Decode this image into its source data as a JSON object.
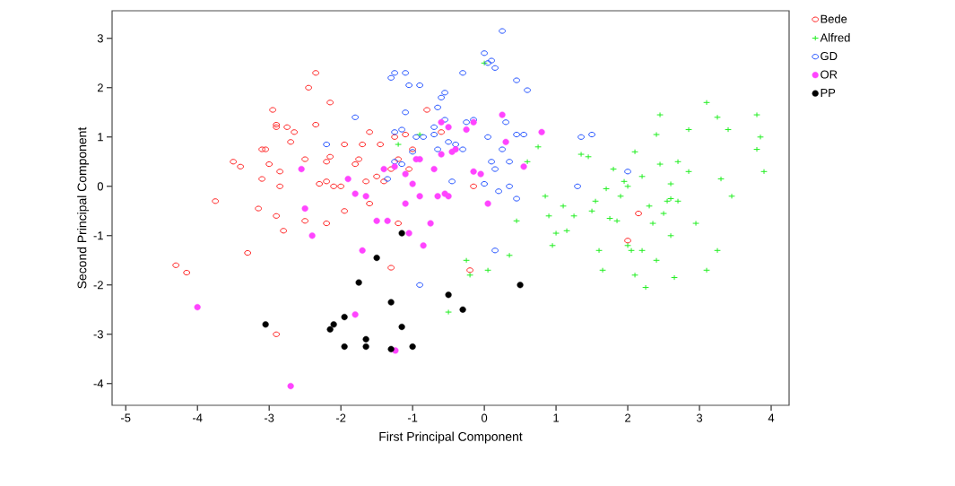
{
  "chart_data": {
    "type": "scatter",
    "xlabel": "First Principal Component",
    "ylabel": "Second Principal Component",
    "xlim": [
      -5.19,
      4.25
    ],
    "ylim": [
      -4.44,
      3.56
    ],
    "xticks": [
      -5,
      -4,
      -3,
      -2,
      -1,
      0,
      1,
      2,
      3,
      4
    ],
    "yticks": [
      -4,
      -3,
      -2,
      -1,
      0,
      1,
      2,
      3
    ],
    "grid": false,
    "legend": "top right",
    "series": [
      {
        "name": "Bede",
        "color": "#ff2020",
        "marker": "circle",
        "x": [
          -4.3,
          -4.15,
          -3.75,
          -3.5,
          -3.4,
          -3.3,
          -3.1,
          -3.05,
          -3.1,
          -3.15,
          -3.0,
          -2.95,
          -2.9,
          -2.9,
          -2.85,
          -2.85,
          -2.9,
          -2.8,
          -2.75,
          -2.65,
          -2.7,
          -2.5,
          -2.5,
          -2.45,
          -2.35,
          -2.35,
          -2.3,
          -2.2,
          -2.2,
          -2.15,
          -2.15,
          -2.1,
          -2.0,
          -1.95,
          -1.95,
          -2.2,
          -1.8,
          -1.7,
          -1.65,
          -1.6,
          -1.6,
          -1.5,
          -1.45,
          -1.3,
          -1.25,
          -1.2,
          -1.1,
          -1.05,
          -1.2,
          -1.0,
          -1.3,
          -0.2,
          -2.9,
          -1.4,
          2.15,
          2.0,
          -0.15,
          -0.8,
          -0.6,
          -1.75
        ],
        "values": [
          -1.6,
          -1.75,
          -0.3,
          0.5,
          0.4,
          -1.35,
          0.75,
          0.75,
          0.15,
          -0.45,
          0.45,
          1.55,
          1.25,
          1.2,
          0.3,
          0.0,
          -0.6,
          -0.9,
          1.2,
          1.1,
          0.9,
          0.55,
          -0.7,
          2.0,
          2.3,
          1.25,
          0.05,
          0.1,
          0.5,
          1.7,
          0.6,
          0.0,
          0.0,
          0.85,
          -0.5,
          -0.75,
          0.45,
          0.85,
          0.1,
          1.1,
          -0.35,
          0.2,
          0.85,
          0.35,
          1.0,
          0.55,
          1.05,
          0.35,
          -0.75,
          0.75,
          -1.65,
          -1.7,
          -3.0,
          0.1,
          -0.55,
          -1.1,
          0.0,
          1.55,
          1.1,
          0.55
        ]
      },
      {
        "name": "Alfred",
        "color": "#22ee22",
        "marker": "cross",
        "x": [
          -1.2,
          -0.9,
          0.0,
          -0.25,
          -0.2,
          0.05,
          0.35,
          -0.5,
          0.45,
          0.6,
          0.75,
          0.85,
          0.9,
          0.95,
          1.0,
          1.1,
          1.15,
          1.25,
          1.35,
          1.45,
          1.5,
          1.55,
          1.6,
          1.65,
          1.7,
          1.75,
          1.8,
          1.9,
          1.95,
          2.0,
          2.05,
          2.1,
          2.2,
          2.25,
          2.3,
          2.35,
          2.4,
          2.45,
          2.45,
          2.5,
          2.55,
          2.6,
          2.65,
          2.7,
          2.85,
          2.85,
          2.95,
          3.1,
          3.1,
          3.25,
          3.25,
          3.3,
          3.4,
          3.45,
          3.8,
          3.8,
          3.85,
          3.9,
          2.4,
          2.2,
          2.6,
          2.0,
          1.85,
          2.7,
          2.6,
          2.1
        ],
        "values": [
          0.85,
          1.05,
          2.5,
          -1.5,
          -1.8,
          -1.7,
          -1.4,
          -2.55,
          -0.7,
          0.5,
          0.8,
          -0.2,
          -0.6,
          -1.2,
          -0.95,
          -0.4,
          -0.9,
          -0.6,
          0.65,
          0.6,
          -0.5,
          -0.3,
          -1.3,
          -1.7,
          -0.05,
          -0.65,
          0.35,
          -0.2,
          0.1,
          -1.2,
          -1.3,
          -1.8,
          0.2,
          -2.05,
          -0.4,
          -0.75,
          -1.5,
          1.45,
          0.45,
          -0.55,
          -0.3,
          -0.25,
          -1.85,
          0.5,
          1.15,
          0.3,
          -0.75,
          1.7,
          -1.7,
          1.4,
          -1.3,
          0.15,
          1.15,
          -0.2,
          1.45,
          0.75,
          1.0,
          0.3,
          1.05,
          -1.3,
          -1.0,
          0.0,
          -0.7,
          -0.3,
          0.05,
          0.7
        ]
      },
      {
        "name": "GD",
        "color": "#2050ff",
        "marker": "circle",
        "x": [
          -2.2,
          -1.8,
          -1.3,
          -1.25,
          -1.1,
          -1.05,
          -0.9,
          -1.25,
          -1.15,
          -1.1,
          -1.0,
          -0.95,
          -0.85,
          -1.25,
          -1.35,
          -1.15,
          -0.7,
          -0.65,
          -0.6,
          -0.55,
          -0.55,
          -0.5,
          -0.45,
          -0.3,
          -0.25,
          0.0,
          0.05,
          0.1,
          0.15,
          0.25,
          0.45,
          0.6,
          0.1,
          0.15,
          0.25,
          0.3,
          0.35,
          0.45,
          0.55,
          0.0,
          0.2,
          0.45,
          -0.65,
          -0.3,
          -0.15,
          0.15,
          -0.9,
          1.35,
          1.5,
          1.3,
          2.0,
          -0.7,
          0.05,
          -0.4,
          0.35
        ],
        "values": [
          0.85,
          1.4,
          2.2,
          2.3,
          2.3,
          2.05,
          2.05,
          1.1,
          1.15,
          1.5,
          0.7,
          1.0,
          1.0,
          0.5,
          0.15,
          0.45,
          1.2,
          1.6,
          1.8,
          1.9,
          1.35,
          0.9,
          0.1,
          2.3,
          1.3,
          2.7,
          2.5,
          2.55,
          2.4,
          3.15,
          2.15,
          1.95,
          0.5,
          0.35,
          0.75,
          1.3,
          0.5,
          1.05,
          1.05,
          0.05,
          -0.1,
          -0.25,
          0.75,
          0.75,
          1.35,
          -1.3,
          -2.0,
          1.0,
          1.05,
          0.0,
          0.3,
          1.05,
          1.0,
          0.85,
          0.0
        ]
      },
      {
        "name": "OR",
        "color": "#ff44ff",
        "marker": "star",
        "x": [
          -4.0,
          -2.7,
          -2.5,
          -2.55,
          -2.4,
          -1.8,
          -1.7,
          -1.8,
          -1.65,
          -1.5,
          -1.4,
          -1.35,
          -1.25,
          -1.1,
          -1.1,
          -0.95,
          -1.0,
          -0.9,
          -0.85,
          -0.75,
          -0.65,
          -0.6,
          -0.55,
          -0.5,
          -0.45,
          -0.4,
          -0.25,
          -0.15,
          -0.15,
          -0.05,
          0.25,
          0.3,
          0.05,
          -0.5,
          -0.6,
          -0.9,
          -1.24,
          -1.9,
          0.8,
          0.55,
          -0.7,
          -1.05
        ],
        "values": [
          -2.45,
          -4.05,
          -0.45,
          0.35,
          -1.0,
          -2.6,
          -1.3,
          -0.15,
          -0.2,
          -0.7,
          0.35,
          -0.7,
          0.4,
          0.25,
          -0.35,
          0.55,
          0.05,
          -0.2,
          -1.2,
          -0.75,
          -0.2,
          0.65,
          -0.15,
          -0.2,
          0.7,
          0.75,
          1.15,
          1.3,
          0.3,
          0.25,
          1.45,
          0.9,
          -0.35,
          1.2,
          1.3,
          0.55,
          -3.33,
          0.15,
          1.1,
          0.4,
          0.35,
          -0.95
        ]
      },
      {
        "name": "PP",
        "color": "#000000",
        "x": [
          -3.05,
          -2.15,
          -2.1,
          -1.95,
          -1.95,
          -1.75,
          -1.65,
          -1.65,
          -1.5,
          -1.3,
          -1.15,
          -1.15,
          -1.0,
          -1.3,
          -0.5,
          -0.3,
          0.5
        ],
        "values": [
          -2.8,
          -2.9,
          -2.8,
          -2.65,
          -3.25,
          -1.95,
          -3.1,
          -3.25,
          -1.45,
          -2.35,
          -0.95,
          -2.85,
          -3.25,
          -3.3,
          -2.2,
          -2.5,
          -2.0
        ]
      }
    ]
  }
}
